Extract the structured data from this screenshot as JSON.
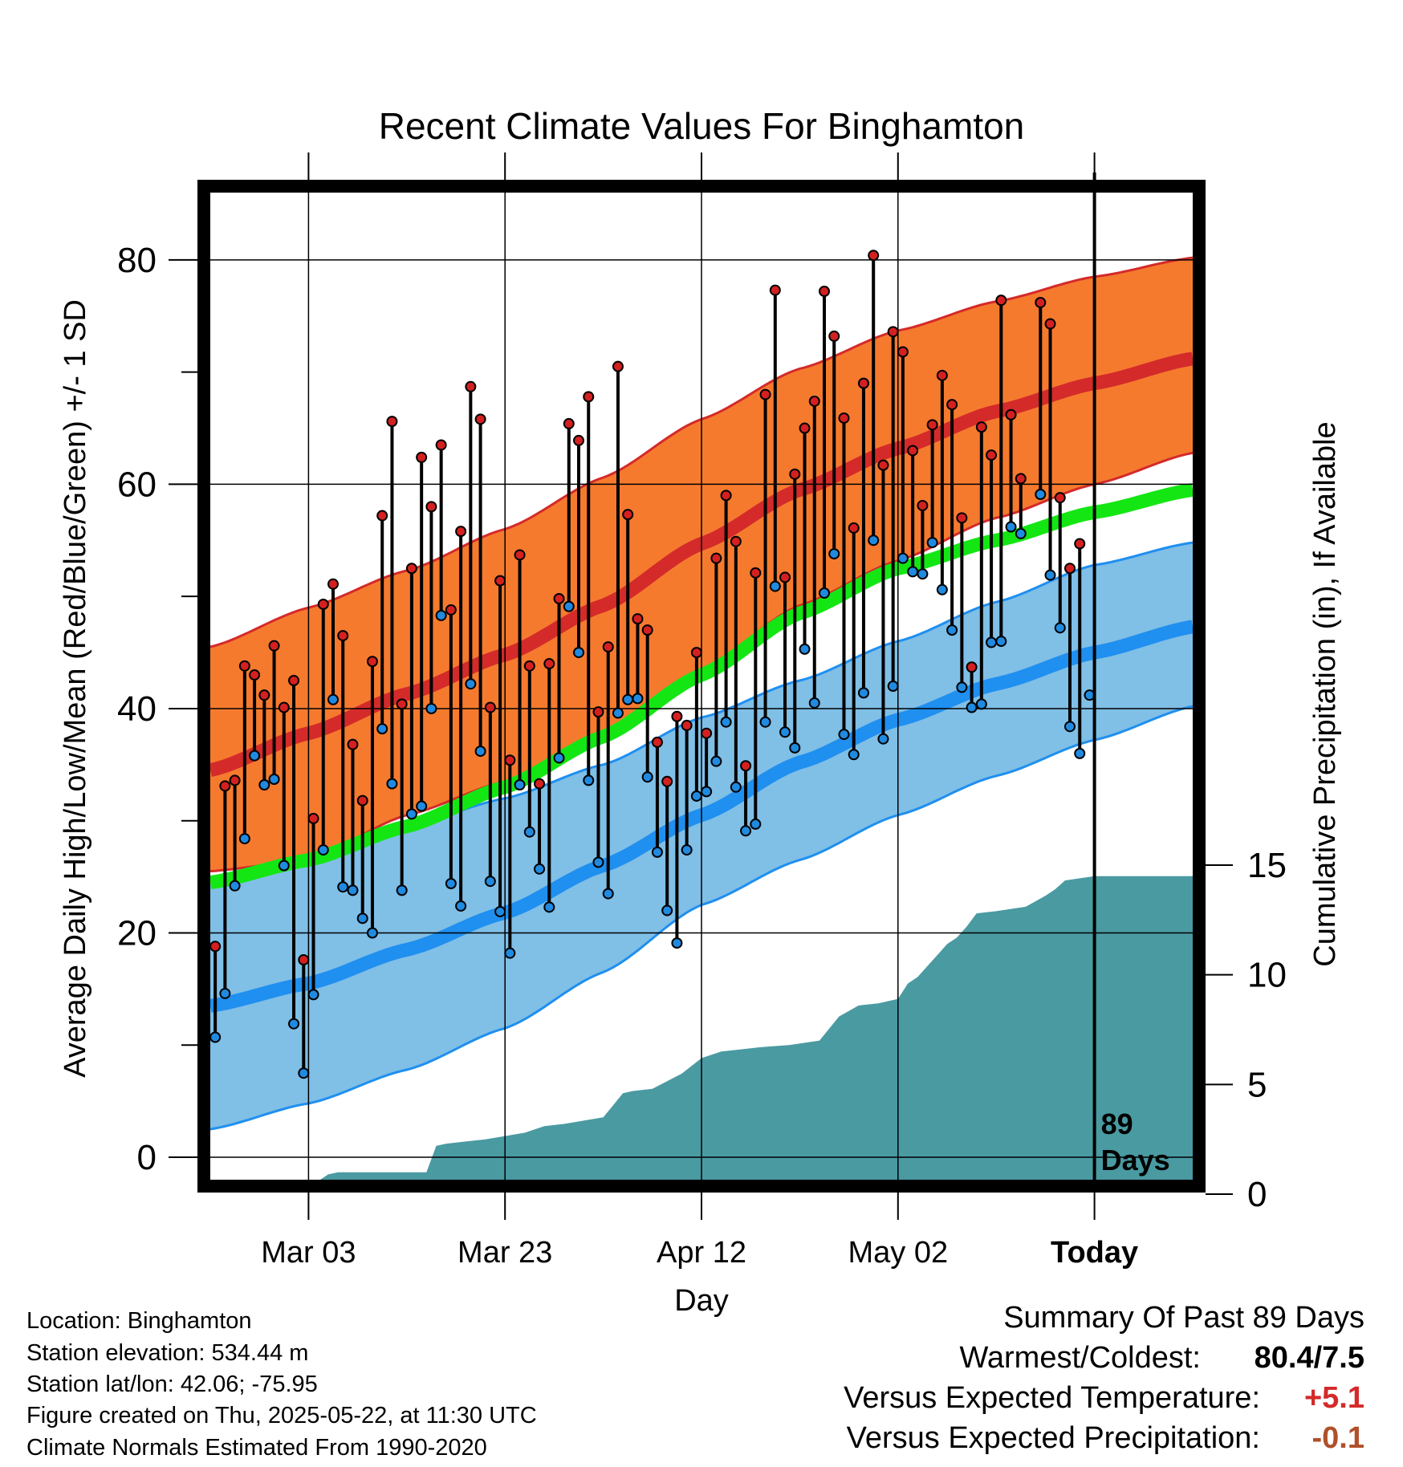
{
  "chart_data": {
    "type": "line",
    "title": "Recent Climate Values For Binghamton",
    "xlabel": "Day",
    "ylabel": "Average Daily High/Low/Mean (Red/Blue/Green) +/- 1 SD",
    "y2label": "Cumulative Precipitation (in), If Available",
    "x_tick_labels": [
      "Mar 03",
      "Mar 23",
      "Apr 12",
      "May 02",
      "Today"
    ],
    "x_tick_days": [
      10,
      30,
      50,
      70,
      90
    ],
    "x_range_days": [
      0,
      100
    ],
    "ylim": [
      -2,
      86
    ],
    "y_ticks": [
      0,
      20,
      40,
      60,
      80
    ],
    "y2lim": [
      0,
      45
    ],
    "y2_ticks": [
      0,
      5,
      10,
      15
    ],
    "grid": true,
    "today_day": 90,
    "today_label_lines": [
      "89",
      "Days"
    ],
    "colors": {
      "high_band": "#f57a2e",
      "high_line": "#d42a2a",
      "low_band": "#80bfe6",
      "low_line": "#1f8ff0",
      "mean_line": "#14e614",
      "precip": "#4a9aa2",
      "high_dot": "#d42020",
      "low_dot": "#1f8ae0"
    },
    "normals": {
      "days": [
        0,
        10,
        20,
        30,
        40,
        50,
        60,
        70,
        80,
        90,
        100
      ],
      "high_mean": [
        34.5,
        37.8,
        41.3,
        44.8,
        49.2,
        54.7,
        59.5,
        63.2,
        66.5,
        69.0,
        71.2
      ],
      "high_upper": [
        45.5,
        49.0,
        52.3,
        56.0,
        60.6,
        65.8,
        70.3,
        73.7,
        76.3,
        78.5,
        80.2
      ],
      "high_lower": [
        25.5,
        26.5,
        30.5,
        33.5,
        37.8,
        43.5,
        49.2,
        53.2,
        57.0,
        60.0,
        62.8
      ],
      "mean": [
        24.5,
        26.5,
        29.5,
        33.0,
        37.5,
        43.0,
        48.5,
        52.5,
        55.0,
        57.5,
        59.5
      ],
      "low_mean": [
        13.5,
        15.5,
        18.5,
        21.8,
        26.0,
        30.5,
        35.2,
        39.0,
        42.2,
        45.0,
        47.3
      ],
      "low_upper": [
        25.0,
        27.0,
        29.5,
        32.0,
        35.0,
        39.2,
        42.5,
        46.0,
        49.5,
        52.8,
        54.8
      ],
      "low_lower": [
        2.5,
        4.8,
        7.8,
        11.5,
        16.5,
        22.5,
        26.5,
        30.5,
        34.0,
        37.2,
        40.2
      ]
    },
    "series": [
      {
        "name": "High",
        "days": [
          0,
          1,
          2,
          3,
          4,
          5,
          6,
          7,
          8,
          9,
          10,
          11,
          12,
          13,
          14,
          15,
          16,
          17,
          18,
          19,
          20,
          21,
          22,
          23,
          24,
          25,
          26,
          27,
          28,
          29,
          30,
          31,
          32,
          33,
          34,
          35,
          36,
          37,
          38,
          39,
          40,
          41,
          42,
          43,
          44,
          45,
          46,
          47,
          48,
          49,
          50,
          51,
          52,
          53,
          54,
          55,
          56,
          57,
          58,
          59,
          60,
          61,
          62,
          63,
          64,
          65,
          66,
          67,
          68,
          69,
          70,
          71,
          72,
          73,
          74,
          75,
          76,
          77,
          78,
          79,
          80,
          81,
          82,
          83,
          84,
          85,
          86,
          87,
          88
        ],
        "values": [
          18.8,
          33.1,
          33.6,
          43.8,
          43.0,
          41.2,
          45.6,
          40.1,
          42.5,
          17.6,
          30.2,
          49.3,
          51.1,
          46.5,
          36.8,
          31.8,
          44.2,
          57.2,
          65.6,
          40.4,
          52.5,
          62.4,
          58.0,
          63.5,
          48.8,
          55.8,
          68.7,
          65.8,
          40.1,
          51.4,
          35.4,
          53.7,
          43.8,
          33.3,
          44.0,
          49.8,
          65.4,
          63.9,
          67.8,
          39.7,
          45.5,
          70.5,
          57.3,
          48.0,
          47.0,
          37.0,
          33.5,
          39.3,
          38.5,
          45.0,
          37.8,
          53.4,
          59.0,
          54.9,
          34.9,
          52.1,
          68.0,
          77.3,
          51.7,
          60.9,
          65.0,
          67.4,
          77.2,
          73.2,
          65.9,
          56.1,
          69.0,
          80.4,
          61.7,
          73.6,
          71.8,
          63.0,
          58.1,
          65.3,
          69.7,
          67.1,
          57.0,
          43.7,
          65.1,
          62.6,
          76.4,
          66.2,
          60.5,
          null,
          76.2,
          74.3,
          58.8,
          52.5,
          54.7
        ]
      },
      {
        "name": "Low",
        "days": [
          0,
          1,
          2,
          3,
          4,
          5,
          6,
          7,
          8,
          9,
          10,
          11,
          12,
          13,
          14,
          15,
          16,
          17,
          18,
          19,
          20,
          21,
          22,
          23,
          24,
          25,
          26,
          27,
          28,
          29,
          30,
          31,
          32,
          33,
          34,
          35,
          36,
          37,
          38,
          39,
          40,
          41,
          42,
          43,
          44,
          45,
          46,
          47,
          48,
          49,
          50,
          51,
          52,
          53,
          54,
          55,
          56,
          57,
          58,
          59,
          60,
          61,
          62,
          63,
          64,
          65,
          66,
          67,
          68,
          69,
          70,
          71,
          72,
          73,
          74,
          75,
          76,
          77,
          78,
          79,
          80,
          81,
          82,
          83,
          84,
          85,
          86,
          87,
          88,
          89
        ],
        "values": [
          10.7,
          14.6,
          24.2,
          28.4,
          35.8,
          33.2,
          33.7,
          26.0,
          11.9,
          7.5,
          14.5,
          27.4,
          40.8,
          24.1,
          23.8,
          21.3,
          20.0,
          38.2,
          33.3,
          23.8,
          30.6,
          31.3,
          40.0,
          48.3,
          24.4,
          22.4,
          42.2,
          36.2,
          24.6,
          21.9,
          18.2,
          33.2,
          29.0,
          25.7,
          22.3,
          35.6,
          49.1,
          45.0,
          33.6,
          26.3,
          23.5,
          39.6,
          40.8,
          40.9,
          33.9,
          27.2,
          22.0,
          19.1,
          27.4,
          32.2,
          32.6,
          35.3,
          38.8,
          33.0,
          29.1,
          29.7,
          38.8,
          50.9,
          37.9,
          36.5,
          45.3,
          40.5,
          50.3,
          53.8,
          37.7,
          35.9,
          41.4,
          55.0,
          37.3,
          42.0,
          53.4,
          52.2,
          52.0,
          54.8,
          50.6,
          47.0,
          41.9,
          40.1,
          40.4,
          45.9,
          46.0,
          56.2,
          55.6,
          null,
          59.1,
          51.9,
          47.2,
          38.4,
          36.0,
          41.2
        ]
      }
    ],
    "precip_cumulative": {
      "days": [
        0,
        9,
        10,
        11,
        12,
        13,
        22,
        23,
        24,
        26,
        28,
        32,
        34,
        36,
        40,
        42,
        43,
        45,
        48,
        50,
        52,
        54,
        56,
        59,
        62,
        64,
        66,
        68,
        70,
        71,
        72,
        73,
        74,
        75,
        76,
        77,
        78,
        80,
        83,
        85,
        86,
        87,
        90,
        100
      ],
      "values": [
        0,
        0.1,
        0.3,
        0.6,
        0.9,
        1.0,
        1.0,
        2.2,
        2.3,
        2.4,
        2.5,
        2.8,
        3.1,
        3.2,
        3.5,
        4.6,
        4.7,
        4.8,
        5.5,
        6.2,
        6.5,
        6.6,
        6.7,
        6.8,
        7.0,
        8.1,
        8.6,
        8.7,
        8.9,
        9.6,
        9.9,
        10.4,
        10.9,
        11.4,
        11.7,
        12.2,
        12.8,
        12.9,
        13.1,
        13.6,
        13.9,
        14.3,
        14.5,
        14.5
      ]
    }
  },
  "info": {
    "location": "Location: Binghamton",
    "elevation": "Station elevation: 534.44 m",
    "latlon": "Station lat/lon: 42.06; -75.95",
    "created": "Figure created on Thu, 2025-05-22, at 11:30 UTC",
    "normals": "Climate Normals Estimated From 1990-2020"
  },
  "summary": {
    "title": "Summary Of Past 89 Days",
    "warmest_label": "Warmest/Coldest:",
    "warmest_value": "80.4/7.5",
    "temp_label": "Versus Expected Temperature:",
    "temp_value": "+5.1",
    "temp_color": "#d42a2a",
    "precip_label": "Versus Expected Precipitation:",
    "precip_value": "-0.1",
    "precip_color": "#b0502a"
  }
}
